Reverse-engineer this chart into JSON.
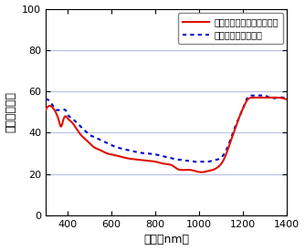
{
  "xlabel": "波長（nm）",
  "ylabel": "反射率（％）",
  "xlim": [
    300,
    1400
  ],
  "ylim": [
    0,
    100
  ],
  "xticks": [
    400,
    600,
    800,
    1000,
    1200,
    1400
  ],
  "yticks": [
    0,
    20,
    40,
    60,
    80,
    100
  ],
  "grid_color": "#b0b8e8",
  "legend1": "表面（サンドブラスト面）",
  "legend2": "裏面（未処理の面）",
  "line1_color": "#dd1100",
  "line2_color": "#0000cc",
  "background": "#ffffff",
  "red_x": [
    300,
    320,
    340,
    350,
    360,
    370,
    380,
    390,
    400,
    420,
    440,
    460,
    480,
    500,
    520,
    540,
    560,
    580,
    600,
    640,
    680,
    720,
    760,
    800,
    840,
    880,
    900,
    920,
    940,
    960,
    980,
    1000,
    1020,
    1040,
    1060,
    1080,
    1100,
    1120,
    1140,
    1160,
    1180,
    1200,
    1220,
    1240,
    1260,
    1280,
    1300,
    1320,
    1360,
    1400
  ],
  "red_y": [
    51,
    53,
    51,
    49,
    46,
    43,
    46,
    48,
    47,
    45,
    42,
    39,
    37,
    35,
    33,
    32,
    31,
    30,
    29.5,
    28.5,
    27.5,
    27,
    26.5,
    26,
    25,
    24,
    22.5,
    22,
    22,
    22,
    21.5,
    21,
    21,
    21.5,
    22,
    23,
    25,
    29,
    35,
    41,
    47,
    52,
    56,
    57,
    57,
    57,
    57,
    57,
    57,
    56
  ],
  "blue_x": [
    300,
    320,
    340,
    350,
    360,
    370,
    380,
    390,
    400,
    420,
    440,
    460,
    480,
    500,
    520,
    540,
    560,
    580,
    600,
    640,
    680,
    720,
    760,
    800,
    840,
    880,
    900,
    920,
    940,
    960,
    980,
    1000,
    1020,
    1040,
    1060,
    1080,
    1100,
    1120,
    1140,
    1160,
    1180,
    1200,
    1220,
    1240,
    1260,
    1280,
    1300,
    1320,
    1360,
    1400
  ],
  "blue_y": [
    56,
    55,
    52,
    51,
    51,
    51,
    51,
    51,
    49,
    47,
    45,
    43,
    41,
    39,
    38,
    37,
    36,
    35,
    34,
    32.5,
    31.5,
    30.5,
    30,
    29.5,
    28.5,
    27.5,
    27,
    27,
    26.5,
    26.5,
    26,
    26,
    26,
    26,
    26.5,
    27,
    28,
    31,
    36,
    42,
    47,
    52,
    57,
    58,
    58,
    58,
    58,
    57,
    57,
    56
  ]
}
